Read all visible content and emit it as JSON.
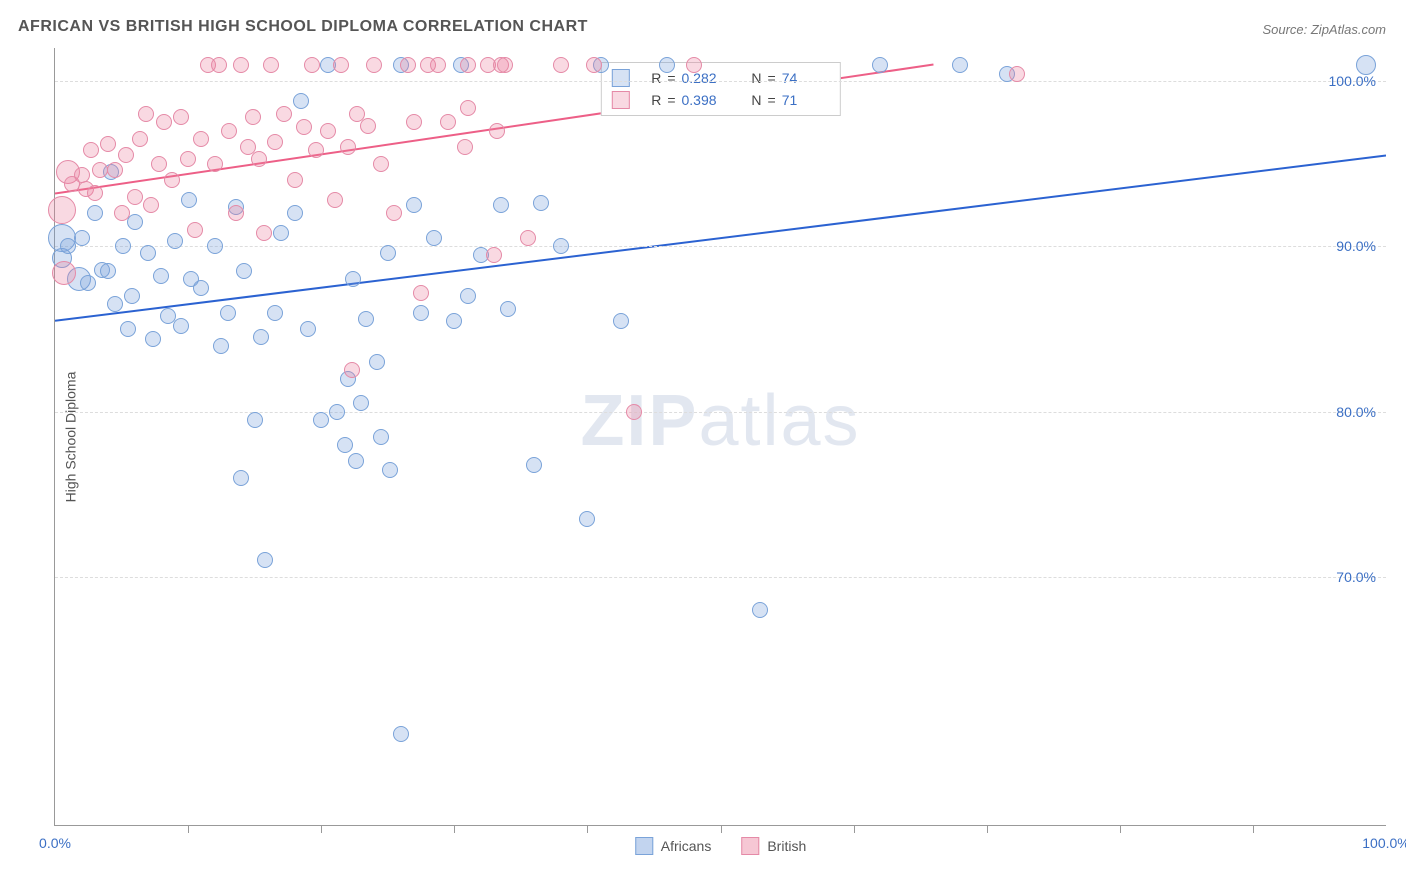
{
  "title": "AFRICAN VS BRITISH HIGH SCHOOL DIPLOMA CORRELATION CHART",
  "source": "Source: ZipAtlas.com",
  "ylabel": "High School Diploma",
  "watermark_bold": "ZIP",
  "watermark_light": "atlas",
  "chart": {
    "type": "scatter",
    "xlim": [
      0,
      100
    ],
    "ylim": [
      55,
      102
    ],
    "background_color": "#ffffff",
    "grid_color": "#dddddd",
    "axis_color": "#999999",
    "tick_label_color": "#3b6fc4",
    "tick_fontsize": 14,
    "title_fontsize": 16,
    "title_color": "#555555",
    "x_ticks_major": [
      0,
      100
    ],
    "x_ticks_minor": [
      10,
      20,
      30,
      40,
      50,
      60,
      70,
      80,
      90
    ],
    "x_tick_labels": [
      "0.0%",
      "100.0%"
    ],
    "y_ticks": [
      70,
      80,
      90,
      100
    ],
    "y_tick_labels": [
      "70.0%",
      "80.0%",
      "90.0%",
      "100.0%"
    ],
    "series": [
      {
        "name": "Africans",
        "fill": "rgba(120,160,220,0.30)",
        "stroke": "#7aa3d9",
        "line_color": "#2b62d1",
        "line_width": 2,
        "trend": {
          "x1": 0,
          "y1": 85.5,
          "x2": 100,
          "y2": 95.5
        },
        "r": 0.282,
        "n": 74,
        "points": [
          {
            "x": 0.5,
            "y": 90.5,
            "r": 14
          },
          {
            "x": 0.5,
            "y": 89.3,
            "r": 10
          },
          {
            "x": 1.8,
            "y": 88.0,
            "r": 12
          },
          {
            "x": 1.0,
            "y": 90.0,
            "r": 8
          },
          {
            "x": 2.5,
            "y": 87.8,
            "r": 8
          },
          {
            "x": 2.0,
            "y": 90.5,
            "r": 8
          },
          {
            "x": 3.5,
            "y": 88.6,
            "r": 8
          },
          {
            "x": 3.0,
            "y": 92.0,
            "r": 8
          },
          {
            "x": 4.0,
            "y": 88.5,
            "r": 8
          },
          {
            "x": 4.5,
            "y": 86.5,
            "r": 8
          },
          {
            "x": 4.2,
            "y": 94.5,
            "r": 8
          },
          {
            "x": 5.1,
            "y": 90.0,
            "r": 8
          },
          {
            "x": 5.5,
            "y": 85.0,
            "r": 8
          },
          {
            "x": 5.8,
            "y": 87.0,
            "r": 8
          },
          {
            "x": 6.0,
            "y": 91.5,
            "r": 8
          },
          {
            "x": 7.0,
            "y": 89.6,
            "r": 8
          },
          {
            "x": 7.4,
            "y": 84.4,
            "r": 8
          },
          {
            "x": 8.5,
            "y": 85.8,
            "r": 8
          },
          {
            "x": 8.0,
            "y": 88.2,
            "r": 8
          },
          {
            "x": 9.0,
            "y": 90.3,
            "r": 8
          },
          {
            "x": 9.5,
            "y": 85.2,
            "r": 8
          },
          {
            "x": 10.2,
            "y": 88.0,
            "r": 8
          },
          {
            "x": 10.1,
            "y": 92.8,
            "r": 8
          },
          {
            "x": 11.0,
            "y": 87.5,
            "r": 8
          },
          {
            "x": 12.0,
            "y": 90.0,
            "r": 8
          },
          {
            "x": 12.5,
            "y": 84.0,
            "r": 8
          },
          {
            "x": 13.0,
            "y": 86.0,
            "r": 8
          },
          {
            "x": 13.6,
            "y": 92.4,
            "r": 8
          },
          {
            "x": 14.0,
            "y": 76.0,
            "r": 8
          },
          {
            "x": 14.2,
            "y": 88.5,
            "r": 8
          },
          {
            "x": 15.0,
            "y": 79.5,
            "r": 8
          },
          {
            "x": 15.5,
            "y": 84.5,
            "r": 8
          },
          {
            "x": 15.8,
            "y": 71.0,
            "r": 8
          },
          {
            "x": 16.5,
            "y": 86.0,
            "r": 8
          },
          {
            "x": 17.0,
            "y": 90.8,
            "r": 8
          },
          {
            "x": 18.0,
            "y": 92.0,
            "r": 8
          },
          {
            "x": 18.5,
            "y": 98.8,
            "r": 8
          },
          {
            "x": 19.0,
            "y": 85.0,
            "r": 8
          },
          {
            "x": 20.0,
            "y": 79.5,
            "r": 8
          },
          {
            "x": 20.5,
            "y": 101.0,
            "r": 8
          },
          {
            "x": 21.2,
            "y": 80.0,
            "r": 8
          },
          {
            "x": 21.8,
            "y": 78.0,
            "r": 8
          },
          {
            "x": 22.0,
            "y": 82.0,
            "r": 8
          },
          {
            "x": 22.4,
            "y": 88.0,
            "r": 8
          },
          {
            "x": 22.6,
            "y": 77.0,
            "r": 8
          },
          {
            "x": 23.0,
            "y": 80.5,
            "r": 8
          },
          {
            "x": 23.4,
            "y": 85.6,
            "r": 8
          },
          {
            "x": 24.2,
            "y": 83.0,
            "r": 8
          },
          {
            "x": 24.5,
            "y": 78.5,
            "r": 8
          },
          {
            "x": 25.0,
            "y": 89.6,
            "r": 8
          },
          {
            "x": 25.2,
            "y": 76.5,
            "r": 8
          },
          {
            "x": 26.0,
            "y": 101.0,
            "r": 8
          },
          {
            "x": 26.0,
            "y": 60.5,
            "r": 8
          },
          {
            "x": 27.5,
            "y": 86.0,
            "r": 8
          },
          {
            "x": 27.0,
            "y": 92.5,
            "r": 8
          },
          {
            "x": 28.5,
            "y": 90.5,
            "r": 8
          },
          {
            "x": 30.0,
            "y": 85.5,
            "r": 8
          },
          {
            "x": 30.5,
            "y": 101.0,
            "r": 8
          },
          {
            "x": 31.0,
            "y": 87.0,
            "r": 8
          },
          {
            "x": 32.0,
            "y": 89.5,
            "r": 8
          },
          {
            "x": 33.5,
            "y": 92.5,
            "r": 8
          },
          {
            "x": 34.0,
            "y": 86.2,
            "r": 8
          },
          {
            "x": 36.0,
            "y": 76.8,
            "r": 8
          },
          {
            "x": 36.5,
            "y": 92.6,
            "r": 8
          },
          {
            "x": 38.0,
            "y": 90.0,
            "r": 8
          },
          {
            "x": 40.0,
            "y": 73.5,
            "r": 8
          },
          {
            "x": 41.0,
            "y": 101.0,
            "r": 8
          },
          {
            "x": 42.5,
            "y": 85.5,
            "r": 8
          },
          {
            "x": 46.0,
            "y": 101.0,
            "r": 8
          },
          {
            "x": 53.0,
            "y": 68.0,
            "r": 8
          },
          {
            "x": 62.0,
            "y": 101.0,
            "r": 8
          },
          {
            "x": 68.0,
            "y": 101.0,
            "r": 8
          },
          {
            "x": 71.5,
            "y": 100.4,
            "r": 8
          },
          {
            "x": 98.5,
            "y": 101.0,
            "r": 10
          }
        ]
      },
      {
        "name": "British",
        "fill": "rgba(235,130,160,0.30)",
        "stroke": "#e58aa7",
        "line_color": "#ed5f87",
        "line_width": 2,
        "trend": {
          "x1": 0,
          "y1": 93.2,
          "x2": 66,
          "y2": 101.0
        },
        "r": 0.398,
        "n": 71,
        "points": [
          {
            "x": 0.5,
            "y": 92.2,
            "r": 14
          },
          {
            "x": 0.7,
            "y": 88.4,
            "r": 12
          },
          {
            "x": 1.0,
            "y": 94.5,
            "r": 12
          },
          {
            "x": 1.3,
            "y": 93.8,
            "r": 8
          },
          {
            "x": 2.0,
            "y": 94.3,
            "r": 8
          },
          {
            "x": 2.3,
            "y": 93.5,
            "r": 8
          },
          {
            "x": 2.7,
            "y": 95.8,
            "r": 8
          },
          {
            "x": 3.0,
            "y": 93.2,
            "r": 8
          },
          {
            "x": 3.4,
            "y": 94.6,
            "r": 8
          },
          {
            "x": 4.0,
            "y": 96.2,
            "r": 8
          },
          {
            "x": 4.5,
            "y": 94.6,
            "r": 8
          },
          {
            "x": 5.0,
            "y": 92.0,
            "r": 8
          },
          {
            "x": 5.3,
            "y": 95.5,
            "r": 8
          },
          {
            "x": 6.0,
            "y": 93.0,
            "r": 8
          },
          {
            "x": 6.4,
            "y": 96.5,
            "r": 8
          },
          {
            "x": 6.8,
            "y": 98.0,
            "r": 8
          },
          {
            "x": 7.2,
            "y": 92.5,
            "r": 8
          },
          {
            "x": 7.8,
            "y": 95.0,
            "r": 8
          },
          {
            "x": 8.2,
            "y": 97.5,
            "r": 8
          },
          {
            "x": 8.8,
            "y": 94.0,
            "r": 8
          },
          {
            "x": 9.5,
            "y": 97.8,
            "r": 8
          },
          {
            "x": 10.0,
            "y": 95.3,
            "r": 8
          },
          {
            "x": 10.5,
            "y": 91.0,
            "r": 8
          },
          {
            "x": 11.0,
            "y": 96.5,
            "r": 8
          },
          {
            "x": 11.5,
            "y": 101.0,
            "r": 8
          },
          {
            "x": 12.0,
            "y": 95.0,
            "r": 8
          },
          {
            "x": 12.3,
            "y": 101.0,
            "r": 8
          },
          {
            "x": 13.1,
            "y": 97.0,
            "r": 8
          },
          {
            "x": 13.6,
            "y": 92.0,
            "r": 8
          },
          {
            "x": 14.0,
            "y": 101.0,
            "r": 8
          },
          {
            "x": 14.5,
            "y": 96.0,
            "r": 8
          },
          {
            "x": 14.9,
            "y": 97.8,
            "r": 8
          },
          {
            "x": 15.3,
            "y": 95.3,
            "r": 8
          },
          {
            "x": 15.7,
            "y": 90.8,
            "r": 8
          },
          {
            "x": 16.2,
            "y": 101.0,
            "r": 8
          },
          {
            "x": 16.5,
            "y": 96.3,
            "r": 8
          },
          {
            "x": 17.2,
            "y": 98.0,
            "r": 8
          },
          {
            "x": 18.0,
            "y": 94.0,
            "r": 8
          },
          {
            "x": 18.7,
            "y": 97.2,
            "r": 8
          },
          {
            "x": 19.3,
            "y": 101.0,
            "r": 8
          },
          {
            "x": 19.6,
            "y": 95.8,
            "r": 8
          },
          {
            "x": 20.5,
            "y": 97.0,
            "r": 8
          },
          {
            "x": 21.0,
            "y": 92.8,
            "r": 8
          },
          {
            "x": 21.5,
            "y": 101.0,
            "r": 8
          },
          {
            "x": 22.0,
            "y": 96.0,
            "r": 8
          },
          {
            "x": 22.3,
            "y": 82.5,
            "r": 8
          },
          {
            "x": 22.7,
            "y": 98.0,
            "r": 8
          },
          {
            "x": 23.5,
            "y": 97.3,
            "r": 8
          },
          {
            "x": 24.0,
            "y": 101.0,
            "r": 8
          },
          {
            "x": 24.5,
            "y": 95.0,
            "r": 8
          },
          {
            "x": 25.5,
            "y": 92.0,
            "r": 8
          },
          {
            "x": 26.5,
            "y": 101.0,
            "r": 8
          },
          {
            "x": 27.0,
            "y": 97.5,
            "r": 8
          },
          {
            "x": 27.5,
            "y": 87.2,
            "r": 8
          },
          {
            "x": 28.0,
            "y": 101.0,
            "r": 8
          },
          {
            "x": 28.8,
            "y": 101.0,
            "r": 8
          },
          {
            "x": 29.5,
            "y": 97.5,
            "r": 8
          },
          {
            "x": 30.8,
            "y": 96.0,
            "r": 8
          },
          {
            "x": 31.0,
            "y": 101.0,
            "r": 8
          },
          {
            "x": 31.0,
            "y": 98.4,
            "r": 8
          },
          {
            "x": 32.5,
            "y": 101.0,
            "r": 8
          },
          {
            "x": 33.0,
            "y": 89.5,
            "r": 8
          },
          {
            "x": 33.2,
            "y": 97.0,
            "r": 8
          },
          {
            "x": 33.5,
            "y": 101.0,
            "r": 8
          },
          {
            "x": 33.8,
            "y": 101.0,
            "r": 8
          },
          {
            "x": 35.5,
            "y": 90.5,
            "r": 8
          },
          {
            "x": 38.0,
            "y": 101.0,
            "r": 8
          },
          {
            "x": 40.5,
            "y": 101.0,
            "r": 8
          },
          {
            "x": 43.5,
            "y": 80.0,
            "r": 8
          },
          {
            "x": 48.0,
            "y": 101.0,
            "r": 8
          },
          {
            "x": 72.3,
            "y": 100.4,
            "r": 8
          }
        ]
      }
    ]
  },
  "legend_top_labels": {
    "r": "R",
    "n": "N",
    "eq": " = "
  },
  "legend_bottom": [
    {
      "label": "Africans",
      "fill": "rgba(120,160,220,0.45)",
      "stroke": "#7aa3d9"
    },
    {
      "label": "British",
      "fill": "rgba(235,130,160,0.45)",
      "stroke": "#e58aa7"
    }
  ]
}
